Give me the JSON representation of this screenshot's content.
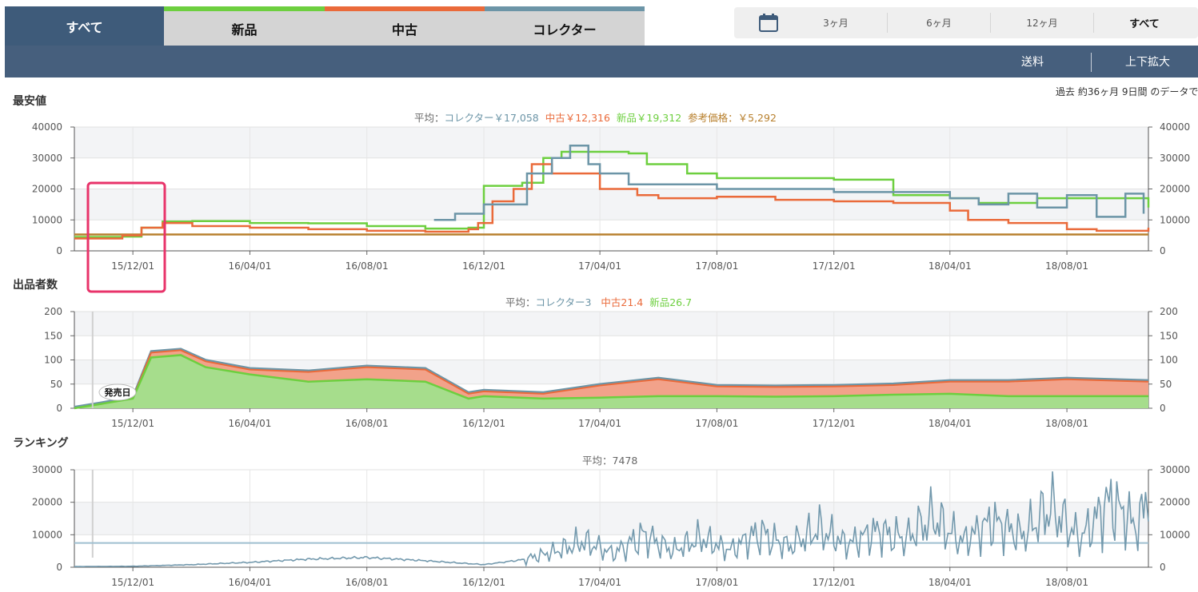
{
  "tabs": {
    "all_label": "すべて",
    "items": [
      {
        "label": "新品",
        "color": "#6dcf3f"
      },
      {
        "label": "中古",
        "color": "#ea6a3a"
      },
      {
        "label": "コレクター",
        "color": "#6c95a7"
      }
    ]
  },
  "range": {
    "icon": "calendar-icon",
    "options": [
      "3ヶ月",
      "6ヶ月",
      "12ヶ月",
      "すべて"
    ],
    "selected": "すべて"
  },
  "navbar": {
    "shipping_label": "送料",
    "zoom_label": "上下拡大"
  },
  "period_text": "過去 約36ヶ月 9日間 のデータで",
  "colors": {
    "collector": "#6c95a7",
    "used": "#ea6a3a",
    "new": "#6dcf3f",
    "reference": "#b8802e",
    "highlight": "#e8336a"
  },
  "sections": {
    "price": {
      "title": "最安値",
      "legend": {
        "prefix": "平均：",
        "collector": "コレクター￥17,058",
        "used": "中古￥12,316",
        "new": "新品￥19,312",
        "reference": "参考価格：￥5,292"
      }
    },
    "sellers": {
      "title": "出品者数",
      "legend": {
        "prefix": "平均：",
        "collector": "コレクター3",
        "used": "中古21.4",
        "new": "新品26.7"
      }
    },
    "ranking": {
      "title": "ランキング",
      "legend": "平均：7478"
    }
  },
  "chart_data": [
    {
      "type": "line",
      "title": "最安値",
      "x_ticks": [
        "15/12/01",
        "16/04/01",
        "16/08/01",
        "16/12/01",
        "17/04/01",
        "17/08/01",
        "17/12/01",
        "18/04/01",
        "18/08/01"
      ],
      "x_range": [
        "2015-10-01",
        "2018-10-25"
      ],
      "ylim": [
        0,
        40000
      ],
      "y_ticks": [
        0,
        10000,
        20000,
        30000,
        40000
      ],
      "series": [
        {
          "name": "新品",
          "x": [
            "2015-10-01",
            "2015-11-20",
            "2015-12-10",
            "2016-01-01",
            "2016-02-01",
            "2016-04-01",
            "2016-06-01",
            "2016-08-01",
            "2016-10-01",
            "2016-11-15",
            "2016-12-01",
            "2017-01-10",
            "2017-02-01",
            "2017-02-20",
            "2017-03-10",
            "2017-04-01",
            "2017-05-01",
            "2017-05-20",
            "2017-07-01",
            "2017-08-01",
            "2017-12-01",
            "2018-02-01",
            "2018-04-01",
            "2018-05-01",
            "2018-07-01",
            "2018-09-01",
            "2018-10-25"
          ],
          "values": [
            4500,
            4600,
            7500,
            9500,
            9600,
            9000,
            8900,
            8000,
            7200,
            7500,
            21000,
            22000,
            30000,
            32000,
            32000,
            32000,
            31500,
            28000,
            25000,
            23500,
            23000,
            18000,
            17000,
            15500,
            17000,
            17000,
            14000
          ]
        },
        {
          "name": "中古",
          "x": [
            "2015-10-01",
            "2015-11-20",
            "2015-12-10",
            "2016-01-01",
            "2016-02-01",
            "2016-04-01",
            "2016-06-01",
            "2016-08-01",
            "2016-10-01",
            "2016-11-15",
            "2016-11-25",
            "2016-12-10",
            "2017-01-01",
            "2017-01-20",
            "2017-02-10",
            "2017-03-01",
            "2017-04-01",
            "2017-05-10",
            "2017-06-01",
            "2017-08-01",
            "2017-10-01",
            "2017-12-01",
            "2018-02-01",
            "2018-04-01",
            "2018-04-20",
            "2018-06-01",
            "2018-08-01",
            "2018-09-01",
            "2018-10-25"
          ],
          "values": [
            4000,
            5000,
            7500,
            9000,
            8000,
            7500,
            7000,
            6500,
            6200,
            7000,
            9000,
            16000,
            20000,
            28000,
            25000,
            25000,
            20000,
            18000,
            17000,
            17500,
            16500,
            16000,
            15500,
            13000,
            10000,
            9000,
            7000,
            6500,
            7500
          ]
        },
        {
          "name": "コレクター",
          "x": [
            "2016-10-10",
            "2016-11-01",
            "2016-12-01",
            "2017-01-15",
            "2017-02-10",
            "2017-03-01",
            "2017-03-20",
            "2017-04-01",
            "2017-05-01",
            "2017-08-01",
            "2017-12-01",
            "2018-02-01",
            "2018-04-01",
            "2018-05-01",
            "2018-06-01",
            "2018-07-01",
            "2018-08-01",
            "2018-09-01",
            "2018-10-01",
            "2018-10-20"
          ],
          "values": [
            10000,
            12000,
            15000,
            25000,
            30000,
            34000,
            28000,
            25000,
            21500,
            20000,
            19000,
            19000,
            17000,
            15000,
            18500,
            14000,
            18000,
            11000,
            18500,
            12000
          ]
        },
        {
          "name": "参考価格",
          "x": [
            "2015-10-01",
            "2018-10-25"
          ],
          "values": [
            5292,
            5292
          ]
        }
      ]
    },
    {
      "type": "area",
      "title": "出品者数",
      "x_ticks": [
        "15/12/01",
        "16/04/01",
        "16/08/01",
        "16/12/01",
        "17/04/01",
        "17/08/01",
        "17/12/01",
        "18/04/01",
        "18/08/01"
      ],
      "x_range": [
        "2015-10-01",
        "2018-10-25"
      ],
      "ylim": [
        0,
        200
      ],
      "y_ticks": [
        0,
        50,
        100,
        150,
        200
      ],
      "annotation": "発売日",
      "series": [
        {
          "name": "新品",
          "x": [
            "2015-10-01",
            "2015-11-01",
            "2015-12-01",
            "2015-12-20",
            "2016-01-20",
            "2016-02-15",
            "2016-04-01",
            "2016-06-01",
            "2016-08-01",
            "2016-10-01",
            "2016-11-15",
            "2016-12-01",
            "2017-02-01",
            "2017-04-01",
            "2017-06-01",
            "2017-08-01",
            "2017-10-01",
            "2017-12-01",
            "2018-02-01",
            "2018-04-01",
            "2018-06-01",
            "2018-08-01",
            "2018-10-25"
          ],
          "values": [
            0,
            10,
            20,
            105,
            110,
            85,
            70,
            55,
            60,
            55,
            20,
            25,
            20,
            22,
            25,
            25,
            24,
            25,
            28,
            30,
            25,
            25,
            25
          ]
        },
        {
          "name": "中古",
          "x": [
            "2015-10-01",
            "2015-11-01",
            "2015-12-01",
            "2015-12-20",
            "2016-01-20",
            "2016-02-15",
            "2016-04-01",
            "2016-06-01",
            "2016-08-01",
            "2016-10-01",
            "2016-11-15",
            "2016-12-01",
            "2017-02-01",
            "2017-04-01",
            "2017-06-01",
            "2017-08-01",
            "2017-10-01",
            "2017-12-01",
            "2018-02-01",
            "2018-04-01",
            "2018-06-01",
            "2018-08-01",
            "2018-10-25"
          ],
          "values": [
            0,
            0,
            1,
            10,
            10,
            12,
            10,
            20,
            25,
            25,
            10,
            10,
            10,
            25,
            35,
            20,
            20,
            20,
            20,
            25,
            30,
            35,
            30
          ]
        },
        {
          "name": "コレクター",
          "x": [
            "2015-10-01",
            "2018-10-25"
          ],
          "values": [
            3,
            3
          ]
        }
      ]
    },
    {
      "type": "line",
      "title": "ランキング",
      "x_ticks": [
        "15/12/01",
        "16/04/01",
        "16/08/01",
        "16/12/01",
        "17/04/01",
        "17/08/01",
        "17/12/01",
        "18/04/01",
        "18/08/01"
      ],
      "x_range": [
        "2015-10-01",
        "2018-10-25"
      ],
      "ylim": [
        0,
        30000
      ],
      "y_ticks": [
        0,
        10000,
        20000,
        30000
      ],
      "average": 7478,
      "series": [
        {
          "name": "ランキング",
          "x": [
            "2015-10-01",
            "2015-12-01",
            "2016-02-01",
            "2016-04-01",
            "2016-06-01",
            "2016-08-01",
            "2016-10-01",
            "2016-12-01",
            "2017-01-15",
            "2017-02-15",
            "2017-03-15",
            "2017-04-15",
            "2017-05-15",
            "2017-06-15",
            "2017-07-15",
            "2017-08-15",
            "2017-09-15",
            "2017-10-15",
            "2017-11-15",
            "2017-12-15",
            "2018-01-15",
            "2018-02-15",
            "2018-03-15",
            "2018-04-15",
            "2018-05-15",
            "2018-06-15",
            "2018-07-15",
            "2018-08-15",
            "2018-09-15",
            "2018-10-15",
            "2018-10-25"
          ],
          "values": [
            200,
            300,
            800,
            1500,
            2500,
            3000,
            2000,
            800,
            2500,
            5000,
            8000,
            4000,
            10000,
            5000,
            9000,
            5000,
            11000,
            6000,
            12000,
            7000,
            11000,
            9000,
            15000,
            8000,
            14000,
            10000,
            18000,
            9000,
            20000,
            12000,
            26000
          ]
        }
      ]
    }
  ]
}
